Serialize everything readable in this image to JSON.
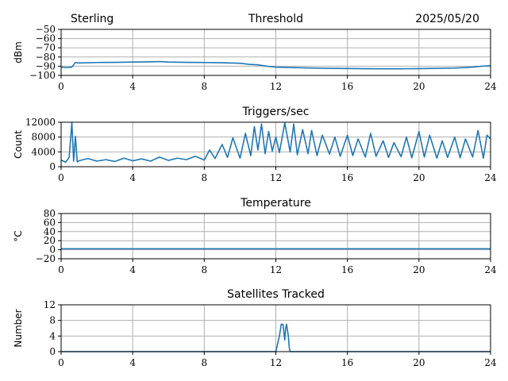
{
  "header": {
    "left": "Sterling",
    "right": "2025/05/20"
  },
  "colors": {
    "series": "#1f77b4",
    "grid": "#b0b0b0",
    "axis": "#000000"
  },
  "chart_data": [
    {
      "type": "line",
      "title": "Threshold",
      "xlabel": "",
      "ylabel": "dBm",
      "xlim": [
        0,
        24
      ],
      "ylim": [
        -100,
        -50
      ],
      "xticks": [
        0,
        4,
        8,
        12,
        16,
        20,
        24
      ],
      "yticks": [
        -50,
        -60,
        -70,
        -80,
        -90,
        -100
      ],
      "grid": true,
      "series": [
        {
          "x": [
            0,
            0.3,
            0.6,
            0.8,
            1.0,
            2.0,
            3.0,
            4.0,
            5.0,
            5.5,
            6.0,
            7.0,
            8.0,
            9.0,
            10.0,
            10.5,
            11.0,
            11.5,
            12.0,
            13.0,
            14.0,
            15.0,
            16.0,
            17.0,
            18.0,
            19.0,
            20.0,
            21.0,
            22.0,
            22.5,
            23.0,
            23.5,
            24.0
          ],
          "y": [
            -91,
            -91.5,
            -91,
            -86,
            -86.5,
            -86,
            -85.8,
            -85.5,
            -85.3,
            -85,
            -85.5,
            -85.8,
            -86,
            -86.3,
            -86.8,
            -88,
            -88.5,
            -90,
            -91,
            -91.5,
            -92,
            -92.3,
            -92.5,
            -92.7,
            -92.8,
            -92.8,
            -92.6,
            -92.3,
            -92,
            -91.5,
            -91,
            -90,
            -89.5
          ]
        }
      ]
    },
    {
      "type": "line",
      "title": "Triggers/sec",
      "xlabel": "",
      "ylabel": "Count",
      "xlim": [
        0,
        24
      ],
      "ylim": [
        0,
        12000
      ],
      "xticks": [
        0,
        4,
        8,
        12,
        16,
        20,
        24
      ],
      "yticks": [
        0,
        4000,
        8000,
        12000
      ],
      "grid": true,
      "series": [
        {
          "x": [
            0,
            0.25,
            0.45,
            0.6,
            0.7,
            0.8,
            0.9,
            1.0,
            1.5,
            2.0,
            2.5,
            3.0,
            3.5,
            4.0,
            4.5,
            5.0,
            5.5,
            6.0,
            6.5,
            7.0,
            7.5,
            8.0,
            8.3,
            8.6,
            9.0,
            9.3,
            9.6,
            10.0,
            10.3,
            10.6,
            10.8,
            11.0,
            11.2,
            11.4,
            11.6,
            11.8,
            12.0,
            12.2,
            12.5,
            12.8,
            13.0,
            13.2,
            13.5,
            13.8,
            14.0,
            14.3,
            14.6,
            15.0,
            15.3,
            15.6,
            16.0,
            16.3,
            16.6,
            17.0,
            17.3,
            17.6,
            18.0,
            18.3,
            18.6,
            19.0,
            19.3,
            19.6,
            20.0,
            20.3,
            20.6,
            21.0,
            21.3,
            21.6,
            22.0,
            22.3,
            22.6,
            23.0,
            23.3,
            23.6,
            23.8,
            24.0
          ],
          "y": [
            1800,
            1200,
            2500,
            12000,
            1500,
            8200,
            1300,
            1600,
            2200,
            1500,
            1900,
            1400,
            2300,
            1600,
            2100,
            1500,
            2600,
            1700,
            2300,
            1900,
            2800,
            1800,
            4500,
            2200,
            6000,
            2500,
            7800,
            2300,
            9000,
            3000,
            10800,
            4500,
            11500,
            3500,
            9500,
            4200,
            8000,
            3800,
            11800,
            4000,
            11500,
            3200,
            10000,
            3500,
            9800,
            3000,
            8500,
            3400,
            8000,
            2800,
            8500,
            3000,
            7500,
            2600,
            9000,
            2800,
            7000,
            2500,
            6500,
            2700,
            8000,
            2400,
            9500,
            2600,
            8500,
            2300,
            7000,
            2500,
            8000,
            2400,
            7500,
            2600,
            9800,
            2300,
            8500,
            7500
          ]
        }
      ]
    },
    {
      "type": "line",
      "title": "Temperature",
      "xlabel": "",
      "ylabel": "°C",
      "xlim": [
        0,
        24
      ],
      "ylim": [
        -20,
        80
      ],
      "xticks": [
        0,
        4,
        8,
        12,
        16,
        20,
        24
      ],
      "yticks": [
        -20,
        0,
        20,
        40,
        60,
        80
      ],
      "grid": true,
      "series": [
        {
          "x": [
            0,
            4,
            8,
            12,
            16,
            20,
            24
          ],
          "y": [
            2,
            2,
            2,
            2,
            2,
            2,
            2
          ]
        }
      ]
    },
    {
      "type": "line",
      "title": "Satellites Tracked",
      "xlabel": "",
      "ylabel": "Number",
      "xlim": [
        0,
        24
      ],
      "ylim": [
        0,
        12
      ],
      "xticks": [
        0,
        4,
        8,
        12,
        16,
        20,
        24
      ],
      "yticks": [
        0,
        4,
        8,
        12
      ],
      "grid": true,
      "series": [
        {
          "x": [
            0,
            12.0,
            12.1,
            12.2,
            12.3,
            12.4,
            12.5,
            12.55,
            12.6,
            12.7,
            12.75,
            12.8,
            24
          ],
          "y": [
            0,
            0,
            2,
            4,
            7,
            7,
            3,
            6,
            7,
            4,
            1,
            0,
            0
          ]
        }
      ]
    }
  ]
}
